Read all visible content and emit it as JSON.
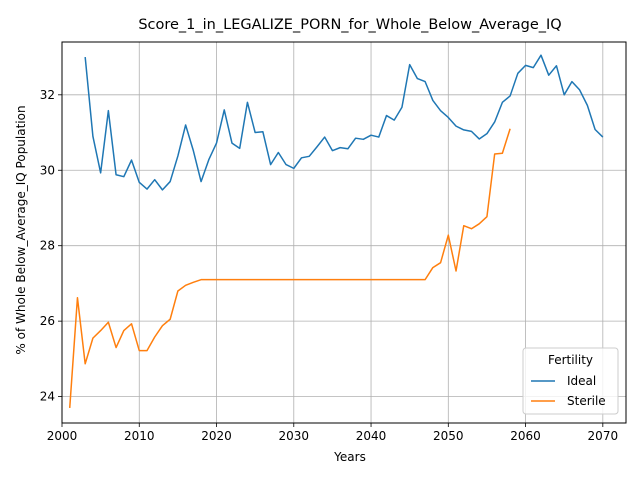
{
  "chart_data": {
    "type": "line",
    "title": "Score_1_in_LEGALIZE_PORN_for_Whole_Below_Average_IQ",
    "xlabel": "Years",
    "ylabel": "% of Whole Below_Average_IQ Population",
    "xlim": [
      2000,
      2073
    ],
    "ylim": [
      23.3,
      33.4
    ],
    "xticks": [
      2000,
      2010,
      2020,
      2030,
      2040,
      2050,
      2060,
      2070
    ],
    "yticks": [
      24,
      26,
      28,
      30,
      32
    ],
    "grid": true,
    "legend": {
      "title": "Fertility",
      "placement": "lower-right"
    },
    "series": [
      {
        "name": "Ideal",
        "color": "#1f77b4",
        "x": [
          2003,
          2004,
          2005,
          2006,
          2007,
          2008,
          2009,
          2010,
          2011,
          2012,
          2013,
          2014,
          2015,
          2016,
          2017,
          2018,
          2019,
          2020,
          2021,
          2022,
          2023,
          2024,
          2025,
          2026,
          2027,
          2028,
          2029,
          2030,
          2031,
          2032,
          2033,
          2034,
          2035,
          2036,
          2037,
          2038,
          2039,
          2040,
          2041,
          2042,
          2043,
          2044,
          2045,
          2046,
          2047,
          2048,
          2049,
          2050,
          2051,
          2052,
          2053,
          2054,
          2055,
          2056,
          2057,
          2058,
          2059,
          2060,
          2061,
          2062,
          2063,
          2064,
          2065,
          2066,
          2067,
          2068,
          2069,
          2070
        ],
        "values": [
          33.0,
          30.9,
          29.93,
          31.58,
          29.88,
          29.83,
          30.27,
          29.68,
          29.5,
          29.75,
          29.48,
          29.7,
          30.38,
          31.2,
          30.52,
          29.7,
          30.28,
          30.72,
          31.6,
          30.72,
          30.58,
          31.8,
          31.0,
          31.02,
          30.15,
          30.47,
          30.15,
          30.05,
          30.33,
          30.37,
          30.62,
          30.88,
          30.52,
          30.6,
          30.57,
          30.85,
          30.82,
          30.93,
          30.88,
          31.45,
          31.33,
          31.67,
          32.8,
          32.43,
          32.35,
          31.85,
          31.58,
          31.4,
          31.17,
          31.07,
          31.03,
          30.83,
          30.97,
          31.28,
          31.8,
          31.97,
          32.57,
          32.78,
          32.72,
          33.05,
          32.52,
          32.77,
          32.0,
          32.35,
          32.13,
          31.72,
          31.08,
          30.88
        ]
      },
      {
        "name": "Sterile",
        "color": "#ff7f0e",
        "x": [
          2001,
          2002,
          2003,
          2004,
          2005,
          2006,
          2007,
          2008,
          2009,
          2010,
          2011,
          2012,
          2013,
          2014,
          2015,
          2016,
          2017,
          2018,
          2019,
          2020,
          2021,
          2022,
          2023,
          2024,
          2025,
          2026,
          2027,
          2028,
          2029,
          2030,
          2031,
          2032,
          2033,
          2034,
          2035,
          2036,
          2037,
          2038,
          2039,
          2040,
          2041,
          2042,
          2043,
          2044,
          2045,
          2046,
          2047,
          2048,
          2049,
          2050,
          2051,
          2052,
          2053,
          2054,
          2055,
          2056,
          2057,
          2058
        ],
        "values": [
          23.7,
          26.62,
          24.87,
          25.55,
          25.75,
          25.97,
          25.3,
          25.75,
          25.93,
          25.22,
          25.22,
          25.58,
          25.88,
          26.05,
          26.8,
          26.95,
          27.03,
          27.1,
          27.1,
          27.1,
          27.1,
          27.1,
          27.1,
          27.1,
          27.1,
          27.1,
          27.1,
          27.1,
          27.1,
          27.1,
          27.1,
          27.1,
          27.1,
          27.1,
          27.1,
          27.1,
          27.1,
          27.1,
          27.1,
          27.1,
          27.1,
          27.1,
          27.1,
          27.1,
          27.1,
          27.1,
          27.1,
          27.42,
          27.55,
          28.28,
          27.33,
          28.53,
          28.45,
          28.58,
          28.77,
          30.43,
          30.45,
          31.1
        ]
      }
    ]
  }
}
